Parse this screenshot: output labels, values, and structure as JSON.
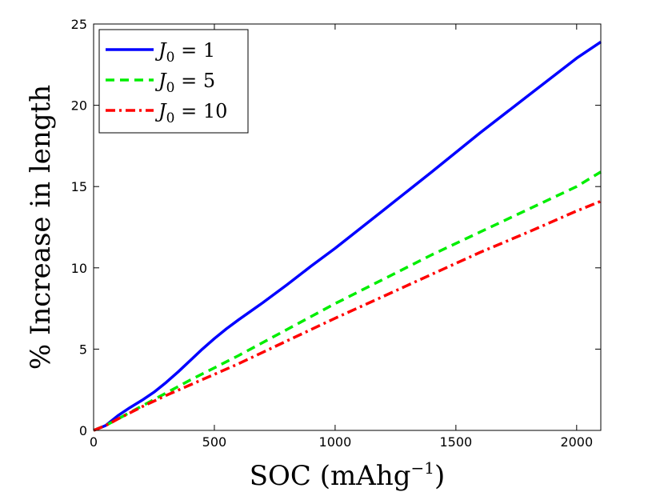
{
  "chart_data": {
    "type": "line",
    "title": "",
    "xlabel": "SOC (mAhg",
    "xlabel_exponent": "−1",
    "xlabel_close": ")",
    "ylabel": "% Increase in length",
    "xlim": [
      0,
      2100
    ],
    "ylim": [
      0,
      25
    ],
    "xticks": [
      0,
      500,
      1000,
      1500,
      2000
    ],
    "yticks": [
      0,
      5,
      10,
      15,
      20,
      25
    ],
    "grid": false,
    "legend_position": "top-left",
    "series": [
      {
        "name": "J0 = 1",
        "legend_symbol": "J",
        "legend_sub": "0",
        "legend_rest": " = 1",
        "color": "#0000ff",
        "style": "solid",
        "x": [
          0,
          50,
          100,
          150,
          200,
          250,
          300,
          350,
          400,
          450,
          500,
          550,
          600,
          700,
          800,
          900,
          1000,
          1200,
          1400,
          1600,
          1800,
          2000,
          2100
        ],
        "y": [
          0,
          0.3,
          0.9,
          1.4,
          1.85,
          2.35,
          2.95,
          3.6,
          4.3,
          5.0,
          5.65,
          6.25,
          6.8,
          7.85,
          8.95,
          10.1,
          11.2,
          13.55,
          15.9,
          18.3,
          20.6,
          22.9,
          23.9
        ]
      },
      {
        "name": "J0 = 5",
        "legend_symbol": "J",
        "legend_sub": "0",
        "legend_rest": " = 5",
        "color": "#00ee00",
        "style": "dashed",
        "x": [
          0,
          50,
          100,
          200,
          300,
          400,
          500,
          600,
          800,
          1000,
          1200,
          1400,
          1600,
          1800,
          2000,
          2100
        ],
        "y": [
          0,
          0.3,
          0.7,
          1.5,
          2.3,
          3.1,
          3.85,
          4.6,
          6.2,
          7.8,
          9.3,
          10.8,
          12.2,
          13.6,
          15.0,
          15.9
        ]
      },
      {
        "name": "J0 = 10",
        "legend_symbol": "J",
        "legend_sub": "0",
        "legend_rest": " = 10",
        "color": "#ff0000",
        "style": "dashdot",
        "x": [
          0,
          50,
          100,
          200,
          300,
          400,
          500,
          600,
          800,
          1000,
          1200,
          1400,
          1600,
          1800,
          2000,
          2100
        ],
        "y": [
          0,
          0.3,
          0.7,
          1.45,
          2.15,
          2.8,
          3.45,
          4.1,
          5.5,
          6.9,
          8.25,
          9.6,
          10.95,
          12.2,
          13.5,
          14.1
        ]
      }
    ]
  }
}
